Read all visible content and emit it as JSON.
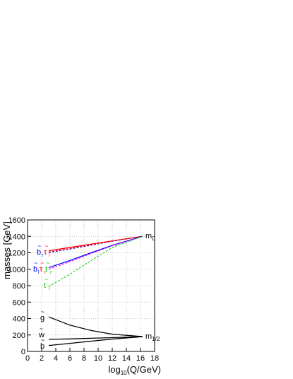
{
  "chart_data": {
    "type": "line",
    "xlabel": "log10(Q/GeV)",
    "ylabel": "masses [GeV]",
    "xlim": [
      0,
      18
    ],
    "ylim": [
      0,
      1600
    ],
    "xticks": [
      "0",
      "2",
      "4",
      "6",
      "8",
      "10",
      "12",
      "14",
      "16",
      "18"
    ],
    "yticks": [
      "0",
      "200",
      "400",
      "600",
      "800",
      "1000",
      "1200",
      "1400",
      "1600"
    ],
    "grid": true,
    "series": [
      {
        "color": "#000000",
        "dash": "solid",
        "x": [
          3,
          6,
          9,
          12,
          16.3
        ],
        "y": [
          420,
          320,
          255,
          210,
          180
        ]
      },
      {
        "color": "#000000",
        "dash": "solid",
        "x": [
          3,
          6,
          9,
          12,
          16.3
        ],
        "y": [
          147,
          152,
          160,
          168,
          180
        ]
      },
      {
        "color": "#000000",
        "dash": "solid",
        "x": [
          3,
          6,
          9,
          12,
          16.3
        ],
        "y": [
          72,
          98,
          125,
          150,
          180
        ]
      },
      {
        "color": "#ff0000",
        "dash": "solid",
        "x": [
          3,
          6,
          9,
          12,
          16.3
        ],
        "y": [
          1225,
          1265,
          1305,
          1345,
          1400
        ]
      },
      {
        "color": "#0000ff",
        "dash": "dashed",
        "x": [
          3,
          6,
          9,
          12,
          16.3
        ],
        "y": [
          1203,
          1245,
          1292,
          1340,
          1400
        ]
      },
      {
        "color": "#ff0000",
        "dash": "dashed",
        "x": [
          3,
          6,
          9,
          12,
          16.3
        ],
        "y": [
          1210,
          1252,
          1298,
          1344,
          1400
        ]
      },
      {
        "color": "#0000ff",
        "dash": "solid",
        "x": [
          3,
          6,
          9,
          12,
          16.3
        ],
        "y": [
          1020,
          1105,
          1200,
          1290,
          1400
        ]
      },
      {
        "color": "#ff00ff",
        "dash": "dashed",
        "x": [
          3,
          6,
          9,
          12,
          16.3
        ],
        "y": [
          1000,
          1090,
          1190,
          1285,
          1400
        ]
      },
      {
        "color": "#00cc00",
        "dash": "dashed",
        "x": [
          3,
          6,
          9,
          12,
          16.3
        ],
        "y": [
          790,
          940,
          1105,
          1265,
          1400
        ]
      }
    ],
    "annotations": {
      "m0": {
        "base": "m",
        "sub": "0"
      },
      "mhalf": {
        "base": "m",
        "sub": "1/2"
      },
      "top_group": [
        {
          "base": "b",
          "sub": "r",
          "tilde": "~",
          "color": "#0000ff"
        },
        {
          "base": "τ",
          "sub": "l",
          "tilde": "~",
          "color": "#ff0000"
        }
      ],
      "mid_group": [
        {
          "base": "b",
          "sub": "l",
          "tilde": "~",
          "color": "#0000ff"
        },
        {
          "base": "τ",
          "sub": "r",
          "tilde": "~",
          "color": "#ff0000"
        },
        {
          "base": "t",
          "sub": "r",
          "tilde": "~",
          "color": "#00cc00"
        }
      ],
      "lower": {
        "base": "t",
        "sub": "l",
        "tilde": "~",
        "color": "#00cc00"
      },
      "gluino": {
        "base": "g",
        "tilde": "~"
      },
      "wino": {
        "base": "w",
        "tilde": "~"
      },
      "bino": {
        "base": "b",
        "tilde": "~"
      }
    }
  }
}
